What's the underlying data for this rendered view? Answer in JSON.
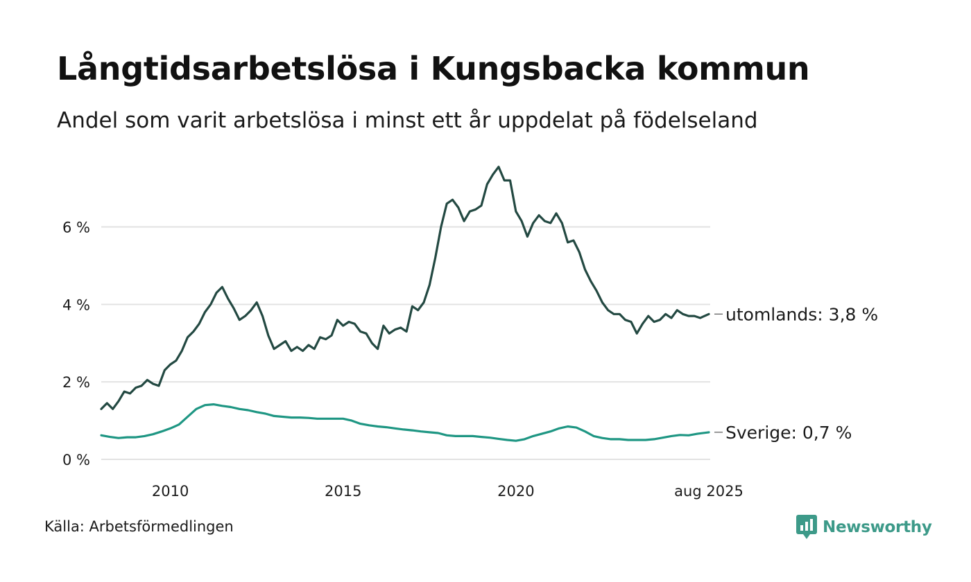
{
  "colors": {
    "utomlands": "#234942",
    "sverige": "#1e9683",
    "grid": "#e2e2e2",
    "brand": "#3d9a89"
  },
  "source": "Källa: Arbetsförmedlingen",
  "brand": {
    "name": "Newsworthy",
    "icon": "newsworthy-logo-icon"
  },
  "chart_data": {
    "type": "line",
    "title": "Långtidsarbetslösa i Kungsbacka kommun",
    "subtitle": "Andel som varit arbetslösa i minst ett år uppdelat på födelseland",
    "xlabel": "",
    "ylabel": "",
    "ylim": [
      0,
      7.6
    ],
    "xlim": [
      "2008-01",
      "2025-08"
    ],
    "grid": true,
    "y_ticks": [
      {
        "value": 0,
        "label": "0 %"
      },
      {
        "value": 2,
        "label": "2 %"
      },
      {
        "value": 4,
        "label": "4 %"
      },
      {
        "value": 6,
        "label": "6 %"
      }
    ],
    "x_ticks": [
      {
        "date": "2010-01",
        "label": "2010"
      },
      {
        "date": "2015-01",
        "label": "2015"
      },
      {
        "date": "2020-01",
        "label": "2020"
      },
      {
        "date": "2025-08",
        "label": "aug 2025"
      }
    ],
    "series": [
      {
        "key": "utomlands",
        "end_label": "utomlands: 3,8 %",
        "points": [
          [
            "2008-01",
            1.3
          ],
          [
            "2008-03",
            1.45
          ],
          [
            "2008-05",
            1.3
          ],
          [
            "2008-07",
            1.5
          ],
          [
            "2008-09",
            1.75
          ],
          [
            "2008-11",
            1.7
          ],
          [
            "2009-01",
            1.85
          ],
          [
            "2009-03",
            1.9
          ],
          [
            "2009-05",
            2.05
          ],
          [
            "2009-07",
            1.95
          ],
          [
            "2009-09",
            1.9
          ],
          [
            "2009-11",
            2.3
          ],
          [
            "2010-01",
            2.45
          ],
          [
            "2010-03",
            2.55
          ],
          [
            "2010-05",
            2.8
          ],
          [
            "2010-07",
            3.15
          ],
          [
            "2010-09",
            3.3
          ],
          [
            "2010-11",
            3.5
          ],
          [
            "2011-01",
            3.8
          ],
          [
            "2011-03",
            4.0
          ],
          [
            "2011-05",
            4.3
          ],
          [
            "2011-07",
            4.45
          ],
          [
            "2011-09",
            4.15
          ],
          [
            "2011-11",
            3.9
          ],
          [
            "2012-01",
            3.6
          ],
          [
            "2012-03",
            3.7
          ],
          [
            "2012-05",
            3.85
          ],
          [
            "2012-07",
            4.05
          ],
          [
            "2012-09",
            3.7
          ],
          [
            "2012-11",
            3.2
          ],
          [
            "2013-01",
            2.85
          ],
          [
            "2013-03",
            2.95
          ],
          [
            "2013-05",
            3.05
          ],
          [
            "2013-07",
            2.8
          ],
          [
            "2013-09",
            2.9
          ],
          [
            "2013-11",
            2.8
          ],
          [
            "2014-01",
            2.95
          ],
          [
            "2014-03",
            2.85
          ],
          [
            "2014-05",
            3.15
          ],
          [
            "2014-07",
            3.1
          ],
          [
            "2014-09",
            3.2
          ],
          [
            "2014-11",
            3.6
          ],
          [
            "2015-01",
            3.45
          ],
          [
            "2015-03",
            3.55
          ],
          [
            "2015-05",
            3.5
          ],
          [
            "2015-07",
            3.3
          ],
          [
            "2015-09",
            3.25
          ],
          [
            "2015-11",
            3.0
          ],
          [
            "2016-01",
            2.85
          ],
          [
            "2016-03",
            3.45
          ],
          [
            "2016-05",
            3.25
          ],
          [
            "2016-07",
            3.35
          ],
          [
            "2016-09",
            3.4
          ],
          [
            "2016-11",
            3.3
          ],
          [
            "2017-01",
            3.95
          ],
          [
            "2017-03",
            3.85
          ],
          [
            "2017-05",
            4.05
          ],
          [
            "2017-07",
            4.5
          ],
          [
            "2017-09",
            5.2
          ],
          [
            "2017-11",
            6.0
          ],
          [
            "2018-01",
            6.6
          ],
          [
            "2018-03",
            6.7
          ],
          [
            "2018-05",
            6.5
          ],
          [
            "2018-07",
            6.15
          ],
          [
            "2018-09",
            6.4
          ],
          [
            "2018-11",
            6.45
          ],
          [
            "2019-01",
            6.55
          ],
          [
            "2019-03",
            7.1
          ],
          [
            "2019-05",
            7.35
          ],
          [
            "2019-07",
            7.55
          ],
          [
            "2019-09",
            7.2
          ],
          [
            "2019-11",
            7.2
          ],
          [
            "2020-01",
            6.4
          ],
          [
            "2020-03",
            6.15
          ],
          [
            "2020-05",
            5.75
          ],
          [
            "2020-07",
            6.1
          ],
          [
            "2020-09",
            6.3
          ],
          [
            "2020-11",
            6.15
          ],
          [
            "2021-01",
            6.1
          ],
          [
            "2021-03",
            6.35
          ],
          [
            "2021-05",
            6.1
          ],
          [
            "2021-07",
            5.6
          ],
          [
            "2021-09",
            5.65
          ],
          [
            "2021-11",
            5.35
          ],
          [
            "2022-01",
            4.9
          ],
          [
            "2022-03",
            4.6
          ],
          [
            "2022-05",
            4.35
          ],
          [
            "2022-07",
            4.05
          ],
          [
            "2022-09",
            3.85
          ],
          [
            "2022-11",
            3.75
          ],
          [
            "2023-01",
            3.75
          ],
          [
            "2023-03",
            3.6
          ],
          [
            "2023-05",
            3.55
          ],
          [
            "2023-07",
            3.25
          ],
          [
            "2023-09",
            3.5
          ],
          [
            "2023-11",
            3.7
          ],
          [
            "2024-01",
            3.55
          ],
          [
            "2024-03",
            3.6
          ],
          [
            "2024-05",
            3.75
          ],
          [
            "2024-07",
            3.65
          ],
          [
            "2024-09",
            3.85
          ],
          [
            "2024-11",
            3.75
          ],
          [
            "2025-01",
            3.7
          ],
          [
            "2025-03",
            3.7
          ],
          [
            "2025-05",
            3.65
          ],
          [
            "2025-08",
            3.75
          ]
        ]
      },
      {
        "key": "sverige",
        "end_label": "Sverige: 0,7 %",
        "points": [
          [
            "2008-01",
            0.62
          ],
          [
            "2008-04",
            0.58
          ],
          [
            "2008-07",
            0.55
          ],
          [
            "2008-10",
            0.57
          ],
          [
            "2009-01",
            0.57
          ],
          [
            "2009-04",
            0.6
          ],
          [
            "2009-07",
            0.65
          ],
          [
            "2009-10",
            0.72
          ],
          [
            "2010-01",
            0.8
          ],
          [
            "2010-04",
            0.9
          ],
          [
            "2010-07",
            1.1
          ],
          [
            "2010-10",
            1.3
          ],
          [
            "2011-01",
            1.4
          ],
          [
            "2011-04",
            1.42
          ],
          [
            "2011-07",
            1.38
          ],
          [
            "2011-10",
            1.35
          ],
          [
            "2012-01",
            1.3
          ],
          [
            "2012-04",
            1.27
          ],
          [
            "2012-07",
            1.22
          ],
          [
            "2012-10",
            1.18
          ],
          [
            "2013-01",
            1.12
          ],
          [
            "2013-04",
            1.1
          ],
          [
            "2013-07",
            1.08
          ],
          [
            "2013-10",
            1.08
          ],
          [
            "2014-01",
            1.07
          ],
          [
            "2014-04",
            1.05
          ],
          [
            "2014-07",
            1.05
          ],
          [
            "2014-10",
            1.05
          ],
          [
            "2015-01",
            1.05
          ],
          [
            "2015-04",
            1.0
          ],
          [
            "2015-07",
            0.92
          ],
          [
            "2015-10",
            0.88
          ],
          [
            "2016-01",
            0.85
          ],
          [
            "2016-04",
            0.83
          ],
          [
            "2016-07",
            0.8
          ],
          [
            "2016-10",
            0.77
          ],
          [
            "2017-01",
            0.75
          ],
          [
            "2017-04",
            0.72
          ],
          [
            "2017-07",
            0.7
          ],
          [
            "2017-10",
            0.68
          ],
          [
            "2018-01",
            0.62
          ],
          [
            "2018-04",
            0.6
          ],
          [
            "2018-07",
            0.6
          ],
          [
            "2018-10",
            0.6
          ],
          [
            "2019-01",
            0.58
          ],
          [
            "2019-04",
            0.56
          ],
          [
            "2019-07",
            0.53
          ],
          [
            "2019-10",
            0.5
          ],
          [
            "2020-01",
            0.48
          ],
          [
            "2020-04",
            0.52
          ],
          [
            "2020-07",
            0.6
          ],
          [
            "2020-10",
            0.66
          ],
          [
            "2021-01",
            0.72
          ],
          [
            "2021-04",
            0.8
          ],
          [
            "2021-07",
            0.85
          ],
          [
            "2021-10",
            0.82
          ],
          [
            "2022-01",
            0.72
          ],
          [
            "2022-04",
            0.6
          ],
          [
            "2022-07",
            0.55
          ],
          [
            "2022-10",
            0.52
          ],
          [
            "2023-01",
            0.52
          ],
          [
            "2023-04",
            0.5
          ],
          [
            "2023-07",
            0.5
          ],
          [
            "2023-10",
            0.5
          ],
          [
            "2024-01",
            0.52
          ],
          [
            "2024-04",
            0.56
          ],
          [
            "2024-07",
            0.6
          ],
          [
            "2024-10",
            0.63
          ],
          [
            "2025-01",
            0.62
          ],
          [
            "2025-04",
            0.66
          ],
          [
            "2025-08",
            0.7
          ]
        ]
      }
    ]
  }
}
